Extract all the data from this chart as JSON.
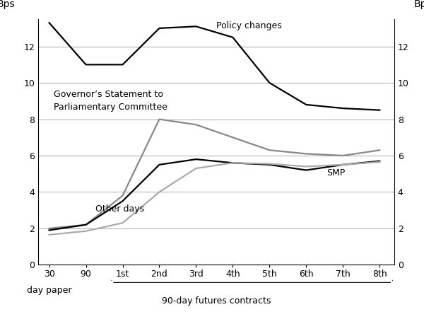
{
  "x_positions": [
    0,
    1,
    2,
    3,
    4,
    5,
    6,
    7,
    8,
    9
  ],
  "x_labels_top": [
    "30",
    "90",
    "1st",
    "2nd",
    "3rd",
    "4th",
    "5th",
    "6th",
    "7th",
    "8th"
  ],
  "policy_changes": [
    13.3,
    11.0,
    11.0,
    13.0,
    13.1,
    12.5,
    10.0,
    8.8,
    8.6,
    8.5
  ],
  "gov_statement": [
    2.0,
    2.2,
    3.8,
    8.0,
    7.7,
    7.0,
    6.3,
    6.1,
    6.0,
    6.3
  ],
  "smp": [
    1.9,
    2.2,
    3.5,
    5.5,
    5.8,
    5.6,
    5.5,
    5.2,
    5.5,
    5.7
  ],
  "other_days": [
    1.65,
    1.85,
    2.3,
    4.0,
    5.3,
    5.6,
    5.55,
    5.4,
    5.5,
    5.65
  ],
  "policy_color": "#000000",
  "gov_color": "#888888",
  "smp_color": "#000000",
  "other_color": "#aaaaaa",
  "ylabel_left": "Bps",
  "ylabel_right": "Bps",
  "ylim": [
    0,
    13.5
  ],
  "yticks": [
    0,
    2,
    4,
    6,
    8,
    10,
    12
  ],
  "background_color": "#ffffff",
  "annotation_policy": "Policy changes",
  "annotation_gov": "Governor’s Statement to\nParliamentary Committee",
  "annotation_smp": "SMP",
  "annotation_other": "Other days",
  "xlabel_futures": "90-day futures contracts",
  "grid_color": "#aaaaaa",
  "line_width": 1.6
}
